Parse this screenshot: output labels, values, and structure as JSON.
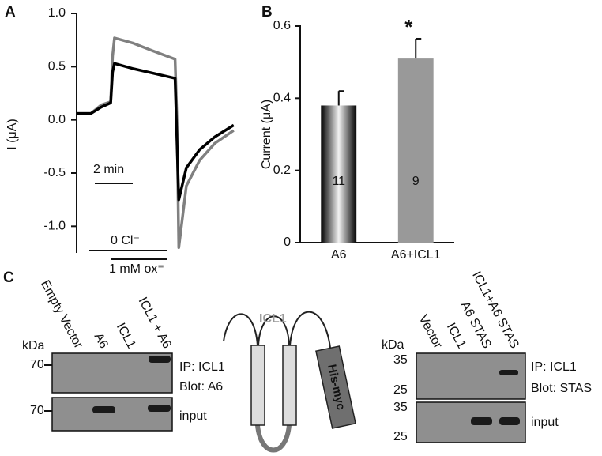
{
  "panel_labels": [
    "A",
    "B",
    "C"
  ],
  "chart_data": [
    {
      "type": "line",
      "ylabel": "I (μA)",
      "x": [
        0,
        0.75,
        1.3,
        1.8,
        1.9,
        2.0,
        3,
        4,
        5.2,
        5.3,
        5.4,
        5.8,
        6.5,
        7.3,
        8.3
      ],
      "xlim": [
        0,
        8.6
      ],
      "series": [
        {
          "color": "#808080",
          "values": [
            0.06,
            0.06,
            0.14,
            0.17,
            0.6,
            0.77,
            0.72,
            0.65,
            0.57,
            0.0,
            -1.2,
            -0.62,
            -0.38,
            -0.22,
            -0.1
          ]
        },
        {
          "color": "#000000",
          "values": [
            0.06,
            0.06,
            0.12,
            0.16,
            0.45,
            0.53,
            0.48,
            0.44,
            0.39,
            -0.2,
            -0.75,
            -0.45,
            -0.28,
            -0.16,
            -0.05
          ]
        }
      ],
      "ylim": [
        -1.25,
        1.0
      ],
      "yticks": [
        {
          "value": -1,
          "label": "-1.0"
        },
        -0.5,
        {
          "value": 0,
          "label": "0.0"
        },
        0.5,
        {
          "value": 1,
          "label": "1.0"
        }
      ],
      "scale_bar_label": "2 min",
      "annotations": [
        "0 Cl⁻",
        "1 mM ox⁼"
      ]
    },
    {
      "type": "bar",
      "ylabel": "Current (μA)",
      "categories": [
        "A6",
        "A6+ICL1"
      ],
      "values": [
        0.38,
        0.51
      ],
      "errors": [
        0.04,
        0.055
      ],
      "n": [
        11,
        9
      ],
      "colors": [
        "#000000",
        "#999999"
      ],
      "ylim": [
        0,
        0.6
      ],
      "yticks": [
        0,
        0.2,
        0.4,
        0.6
      ],
      "significance": "*"
    }
  ],
  "blot_left": {
    "kda": "kDa",
    "lanes": [
      "Empty Vector",
      "A6",
      "ICL1",
      "ICL1 + A6"
    ],
    "markers": [
      "70",
      "70"
    ],
    "labels": [
      "IP: ICL1",
      "Blot: A6",
      "input"
    ]
  },
  "diagram": {
    "protein": "ICL1",
    "tag": "His-myc"
  },
  "blot_right": {
    "kda": "kDa",
    "lanes": [
      "Vector",
      "ICL1",
      "A6 STAS",
      "ICL1+A6 STAS"
    ],
    "markers": [
      "35",
      "25",
      "35",
      "25"
    ],
    "labels": [
      "IP: ICL1",
      "Blot: STAS",
      "input"
    ]
  }
}
